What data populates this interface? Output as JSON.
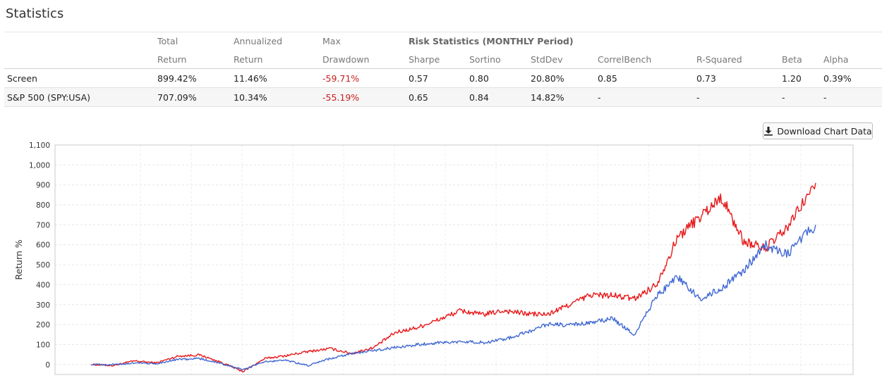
{
  "page": {
    "title": "Statistics"
  },
  "stats": {
    "header_row1": [
      "",
      "Total",
      "Annualized",
      "Max",
      "Risk Statistics (MONTHLY Period)"
    ],
    "header_row2": [
      "",
      "Return",
      "Return",
      "Drawdown",
      "Sharpe",
      "Sortino",
      "StdDev",
      "CorrelBench",
      "R-Squared",
      "Beta",
      "Alpha"
    ],
    "rows": [
      {
        "name": "Screen",
        "total_return": "899.42%",
        "annualized_return": "11.46%",
        "max_drawdown": "-59.71%",
        "sharpe": "0.57",
        "sortino": "0.80",
        "stddev": "20.80%",
        "correl_bench": "0.85",
        "r_squared": "0.73",
        "beta": "1.20",
        "alpha": "0.39%"
      },
      {
        "name": "S&P 500 (SPY:USA)",
        "total_return": "707.09%",
        "annualized_return": "10.34%",
        "max_drawdown": "-55.19%",
        "sharpe": "0.65",
        "sortino": "0.84",
        "stddev": "14.82%",
        "correl_bench": "-",
        "r_squared": "-",
        "beta": "-",
        "alpha": "-"
      }
    ]
  },
  "download_button": {
    "label": "Download Chart Data",
    "icon": "download-icon"
  },
  "chart_data": {
    "type": "line",
    "ylabel": "Return %",
    "xlabel": "",
    "ylim": [
      -50,
      1100
    ],
    "y_ticks": [
      "0",
      "100",
      "200",
      "300",
      "400",
      "500",
      "600",
      "700",
      "800",
      "900",
      "1,000",
      "1,100"
    ],
    "grid": true,
    "x": [
      0,
      3,
      6,
      9,
      12,
      15,
      18,
      21,
      24,
      27,
      30,
      33,
      36,
      39,
      42,
      45,
      48,
      51,
      54,
      57,
      60,
      63,
      66,
      69,
      72,
      75,
      78,
      81,
      84,
      87,
      90,
      93,
      96,
      100
    ],
    "series": [
      {
        "name": "Screen",
        "color": "#e8191b",
        "values": [
          0,
          -5,
          18,
          8,
          42,
          48,
          10,
          -35,
          30,
          45,
          65,
          80,
          55,
          85,
          160,
          185,
          225,
          270,
          250,
          270,
          255,
          250,
          300,
          350,
          345,
          330,
          400,
          640,
          740,
          840,
          620,
          580,
          680,
          910
        ]
      },
      {
        "name": "S&P 500 (SPY:USA)",
        "color": "#4169d2",
        "values": [
          0,
          0,
          6,
          5,
          25,
          30,
          5,
          -28,
          15,
          20,
          -5,
          30,
          55,
          70,
          85,
          100,
          110,
          115,
          110,
          125,
          160,
          200,
          200,
          210,
          230,
          150,
          340,
          440,
          330,
          380,
          470,
          600,
          550,
          700
        ]
      }
    ]
  }
}
